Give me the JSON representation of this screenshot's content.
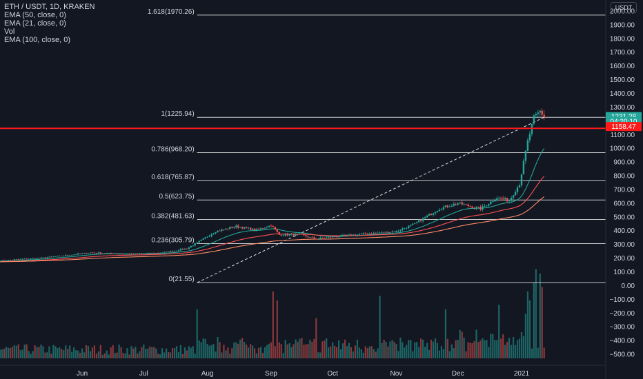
{
  "legend": {
    "title": "ETH / USDT, 1D, KRAKEN",
    "indicators": [
      "EMA (50, close, 0)",
      "EMA (21, close, 0)",
      "Vol",
      "EMA (100, close, 0)"
    ]
  },
  "currency_button": "USDT",
  "colors": {
    "background": "#131722",
    "text": "#d1d4dc",
    "bull": "#26a69a",
    "bear": "#ef5350",
    "ema21": "#26a69a",
    "ema50": "#ff5252",
    "ema100": "#ff8a65",
    "resistance": "#ff1a1a",
    "fib": "#e8e8e8"
  },
  "chart_data": {
    "type": "candlestick",
    "y_ticks": [
      "2000.00",
      "1900.00",
      "1800.00",
      "1700.00",
      "1600.00",
      "1500.00",
      "1400.00",
      "1300.00",
      "1200.00",
      "1100.00",
      "1000.00",
      "900.00",
      "800.00",
      "700.00",
      "600.00",
      "500.00",
      "400.00",
      "300.00",
      "200.00",
      "100.00",
      "0.00",
      "−100.00",
      "−200.00",
      "−300.00",
      "−400.00",
      "−500.00"
    ],
    "y_tick_values": [
      2000,
      1900,
      1800,
      1700,
      1600,
      1500,
      1400,
      1300,
      1200,
      1100,
      1000,
      900,
      800,
      700,
      600,
      500,
      400,
      300,
      200,
      100,
      0,
      -100,
      -200,
      -300,
      -400,
      -500
    ],
    "ylim": [
      -580,
      2080
    ],
    "x_ticks": [
      "Jun",
      "Jul",
      "Aug",
      "Sep",
      "Oct",
      "Nov",
      "Dec",
      "2021"
    ],
    "x_tick_dates": [
      "2020-06-01",
      "2020-07-01",
      "2020-08-01",
      "2020-09-01",
      "2020-10-01",
      "2020-11-01",
      "2020-12-01",
      "2021-01-01"
    ],
    "x_range": [
      "2020-04-22",
      "2021-02-11"
    ],
    "fib_levels": [
      {
        "label": "1.618(1970.26)",
        "value": 1970.26
      },
      {
        "label": "1(1225.94)",
        "value": 1225.94
      },
      {
        "label": "0.786(968.20)",
        "value": 968.2
      },
      {
        "label": "0.618(765.87)",
        "value": 765.87
      },
      {
        "label": "0.5(623.75)",
        "value": 623.75
      },
      {
        "label": "0.382(481.63)",
        "value": 481.63
      },
      {
        "label": "0.236(305.79)",
        "value": 305.79
      },
      {
        "label": "0(21.55)",
        "value": 21.55
      }
    ],
    "resistance_level": 1145,
    "trend_line": {
      "from": [
        "2020-07-27",
        21.55
      ],
      "to": [
        "2021-01-12",
        1225.94
      ]
    },
    "price_labels": [
      {
        "text": "1231.28",
        "value": 1231.28,
        "color": "#26a69a"
      },
      {
        "text": "04:20:10",
        "value": 1196,
        "color": "#26a69a"
      },
      {
        "text": "1158.47",
        "value": 1158.47,
        "color": "#ff1a1a"
      }
    ],
    "price_anchors": [
      [
        "2020-04-22",
        182
      ],
      [
        "2020-05-15",
        205
      ],
      [
        "2020-06-05",
        240
      ],
      [
        "2020-06-25",
        228
      ],
      [
        "2020-07-10",
        240
      ],
      [
        "2020-07-22",
        270
      ],
      [
        "2020-07-28",
        320
      ],
      [
        "2020-08-05",
        395
      ],
      [
        "2020-08-15",
        430
      ],
      [
        "2020-08-25",
        405
      ],
      [
        "2020-09-01",
        440
      ],
      [
        "2020-09-05",
        370
      ],
      [
        "2020-09-15",
        370
      ],
      [
        "2020-09-23",
        340
      ],
      [
        "2020-10-01",
        355
      ],
      [
        "2020-10-15",
        375
      ],
      [
        "2020-11-01",
        395
      ],
      [
        "2020-11-10",
        450
      ],
      [
        "2020-11-22",
        560
      ],
      [
        "2020-12-01",
        600
      ],
      [
        "2020-12-12",
        560
      ],
      [
        "2020-12-20",
        640
      ],
      [
        "2020-12-26",
        620
      ],
      [
        "2020-12-31",
        740
      ],
      [
        "2021-01-04",
        1050
      ],
      [
        "2021-01-07",
        1220
      ],
      [
        "2021-01-10",
        1270
      ],
      [
        "2021-01-12",
        1231
      ]
    ],
    "volume_spikes": [
      [
        "2020-07-27",
        0.55
      ],
      [
        "2020-09-02",
        0.75
      ],
      [
        "2020-09-04",
        0.65
      ],
      [
        "2020-09-23",
        0.45
      ],
      [
        "2020-10-24",
        0.7
      ],
      [
        "2020-11-25",
        0.55
      ],
      [
        "2020-12-21",
        0.6
      ],
      [
        "2021-01-03",
        0.5
      ],
      [
        "2021-01-04",
        0.75
      ],
      [
        "2021-01-05",
        0.65
      ],
      [
        "2021-01-07",
        0.85
      ],
      [
        "2021-01-08",
        1.0
      ],
      [
        "2021-01-10",
        0.95
      ],
      [
        "2021-01-11",
        0.8
      ]
    ],
    "ema_series": [
      {
        "name": "EMA (21, close, 0)",
        "period": 21,
        "color": "#26a69a"
      },
      {
        "name": "EMA (50, close, 0)",
        "period": 50,
        "color": "#ff5252"
      },
      {
        "name": "EMA (100, close, 0)",
        "period": 100,
        "color": "#ff8a65"
      }
    ],
    "volume_floor": -530,
    "volume_peak": 120
  }
}
